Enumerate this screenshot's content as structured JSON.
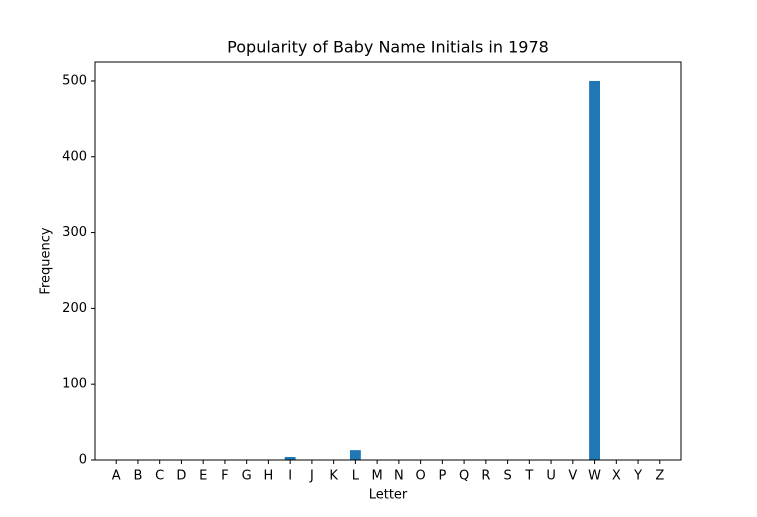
{
  "chart_data": {
    "type": "bar",
    "title": "Popularity of Baby Name Initials in 1978",
    "x_label": "Letter",
    "y_label": "Frequency",
    "categories": [
      "A",
      "B",
      "C",
      "D",
      "E",
      "F",
      "G",
      "H",
      "I",
      "J",
      "K",
      "L",
      "M",
      "N",
      "O",
      "P",
      "Q",
      "R",
      "S",
      "T",
      "U",
      "V",
      "W",
      "X",
      "Y",
      "Z"
    ],
    "values": [
      0,
      0,
      0,
      0,
      0,
      0,
      0,
      0,
      4,
      0,
      0,
      13,
      0,
      0,
      0,
      0,
      0,
      0,
      0,
      0,
      0,
      0,
      500,
      0,
      0,
      0
    ],
    "color": "#1f77b4",
    "ylim": [
      0,
      525
    ],
    "yticks": [
      0,
      100,
      200,
      300,
      400,
      500
    ],
    "grid": false
  }
}
